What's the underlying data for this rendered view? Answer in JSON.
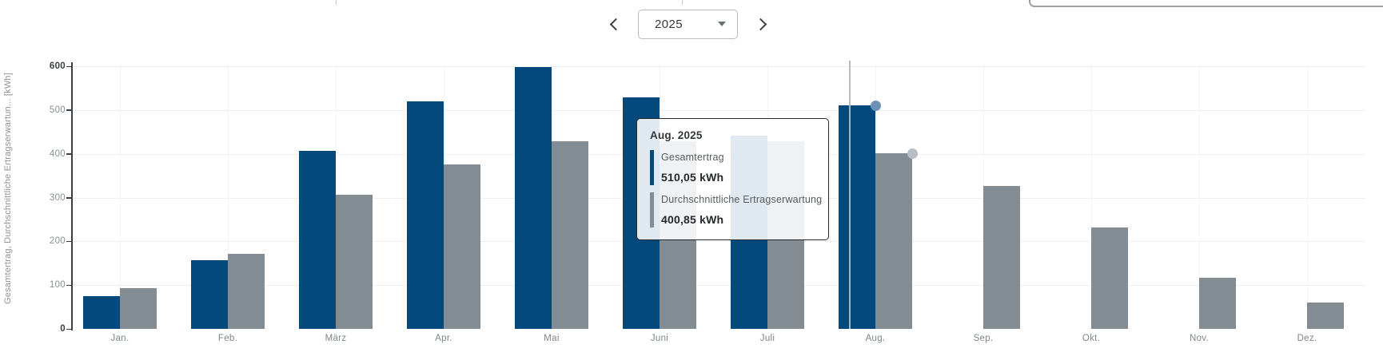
{
  "colors": {
    "series_total": "#04497c",
    "series_expected": "#838b93",
    "marker_total": "#6b91b5",
    "marker_expected": "#b6bdc4",
    "grid": "#edeff1",
    "axis": "#3c4044"
  },
  "year_selector": {
    "value": "2025"
  },
  "chart_data": {
    "type": "bar",
    "categories": [
      "Jan.",
      "Feb.",
      "März",
      "Apr.",
      "Mai",
      "Juni",
      "Juli",
      "Aug.",
      "Sep.",
      "Okt.",
      "Nov.",
      "Dez."
    ],
    "series": [
      {
        "name": "Gesamtertrag",
        "values": [
          75,
          156,
          406,
          519,
          598,
          528,
          442,
          510.05,
          null,
          null,
          null,
          null
        ]
      },
      {
        "name": "Durchschnittliche Ertragserwartung",
        "values": [
          93,
          172,
          307,
          376,
          428,
          428,
          428,
          400.85,
          326,
          231,
          117,
          60
        ]
      }
    ],
    "ylabel": "Gesamtertrag, Durchschnittliche Ertragserwartun... [kWh]",
    "ylim": [
      0,
      600
    ],
    "yticks": [
      0,
      100,
      200,
      300,
      400,
      500,
      600
    ],
    "grid": true,
    "legend_position": "none",
    "hovered_category": "Aug."
  },
  "tooltip": {
    "title": "Aug. 2025",
    "rows": [
      {
        "label": "Gesamtertrag",
        "value": "510,05 kWh"
      },
      {
        "label": "Durchschnittliche Ertragserwartung",
        "value": "400,85 kWh"
      }
    ]
  }
}
